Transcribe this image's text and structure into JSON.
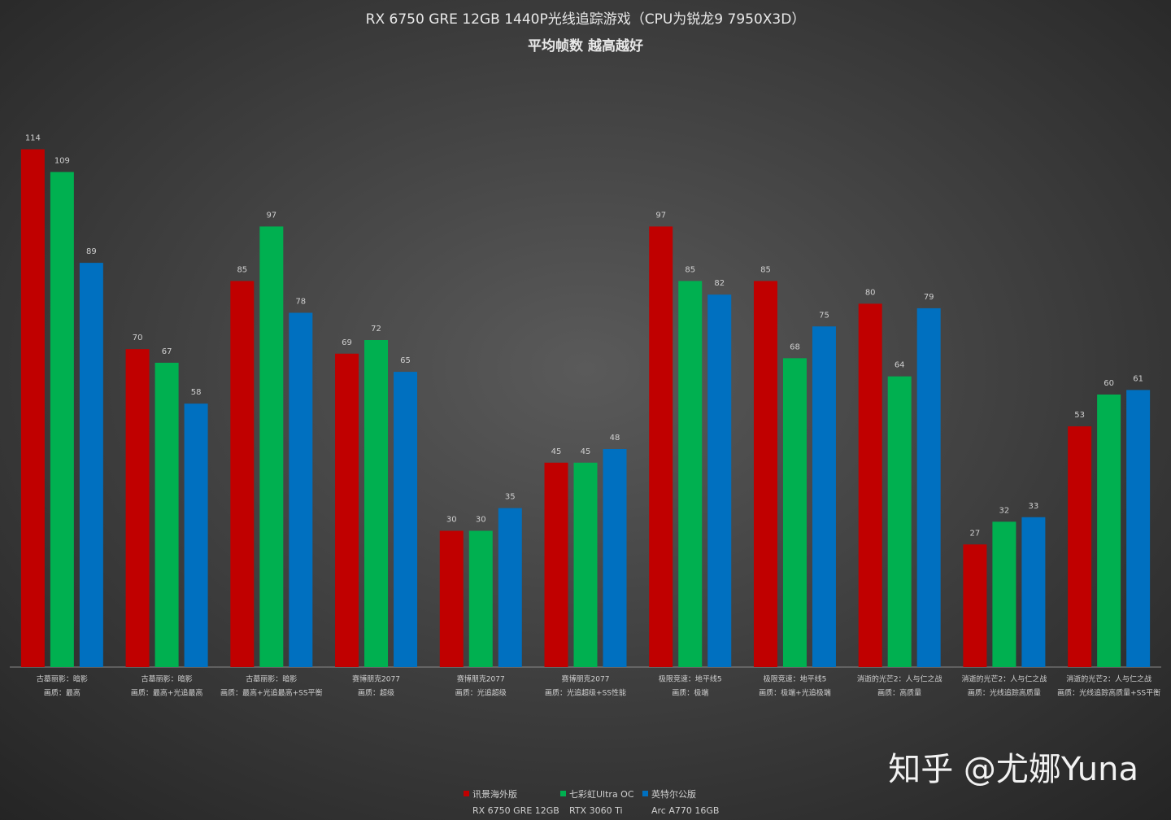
{
  "chart_data": {
    "type": "bar",
    "title": "RX 6750 GRE 12GB 1440P光线追踪游戏（CPU为锐龙9 7950X3D）",
    "subtitle": "平均帧数 越高越好",
    "categories": [
      [
        "古墓丽影：暗影",
        "画质：最高"
      ],
      [
        "古墓丽影：暗影",
        "画质：最高+光追最高"
      ],
      [
        "古墓丽影：暗影",
        "画质：最高+光追最高+SS平衡"
      ],
      [
        "赛博朋克2077",
        "画质：超级"
      ],
      [
        "赛博朋克2077",
        "画质：光追超级"
      ],
      [
        "赛博朋克2077",
        "画质：光追超级+SS性能"
      ],
      [
        "极限竞速：地平线5",
        "画质：极端"
      ],
      [
        "极限竞速：地平线5",
        "画质：极端+光追极端"
      ],
      [
        "消逝的光芒2：人与仁之战",
        "画质：高质量"
      ],
      [
        "消逝的光芒2：人与仁之战",
        "画质：光线追踪高质量"
      ],
      [
        "消逝的光芒2：人与仁之战",
        "画质：光线追踪高质量+SS平衡"
      ]
    ],
    "series": [
      {
        "name": "讯景海外版",
        "model": "RX 6750 GRE 12GB",
        "color": "#c00000",
        "values": [
          114,
          70,
          85,
          69,
          30,
          45,
          97,
          85,
          80,
          27,
          53
        ]
      },
      {
        "name": "七彩虹Ultra OC",
        "model": "RTX 3060 Ti",
        "color": "#00b050",
        "values": [
          109,
          67,
          97,
          72,
          30,
          45,
          85,
          68,
          64,
          32,
          60
        ]
      },
      {
        "name": "英特尔公版",
        "model": "Arc A770 16GB",
        "color": "#0070c0",
        "values": [
          89,
          58,
          78,
          65,
          35,
          48,
          82,
          75,
          79,
          33,
          61
        ]
      }
    ],
    "ylim": [
      0,
      120
    ],
    "legend": "bottom",
    "watermark": "知乎 @尤娜Yuna"
  }
}
